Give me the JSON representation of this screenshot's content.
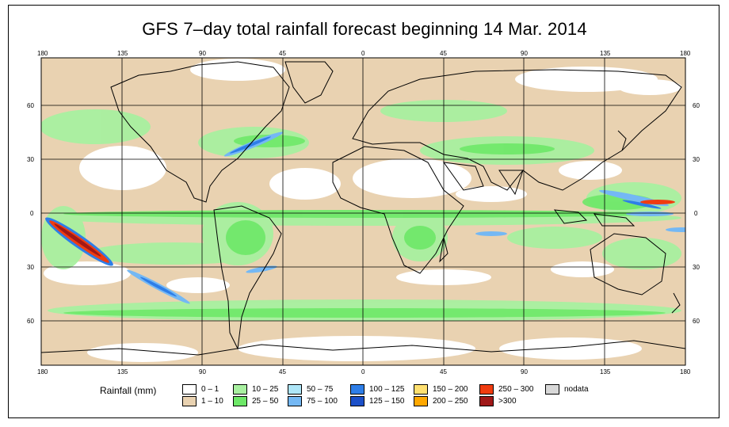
{
  "title": "GFS 7–day total rainfall forecast beginning 14 Mar. 2014",
  "longitude_labels": [
    "180",
    "135",
    "90",
    "45",
    "0",
    "45",
    "90",
    "135",
    "180"
  ],
  "latitude_labels": [
    "60",
    "30",
    "0",
    "30",
    "60"
  ],
  "legend": {
    "title": "Rainfall (mm)",
    "items": [
      {
        "label": "0 – 1",
        "color": "#ffffff"
      },
      {
        "label": "1 – 10",
        "color": "#e9d2b1"
      },
      {
        "label": "10 – 25",
        "color": "#a8f0a0"
      },
      {
        "label": "25 – 50",
        "color": "#6ee868"
      },
      {
        "label": "50 – 75",
        "color": "#aee6f8"
      },
      {
        "label": "75 – 100",
        "color": "#74b8f4"
      },
      {
        "label": "100 – 125",
        "color": "#2e7ee8"
      },
      {
        "label": "125 – 150",
        "color": "#1c50c8"
      },
      {
        "label": "150 – 200",
        "color": "#ffe070"
      },
      {
        "label": "200 – 250",
        "color": "#ffa800"
      },
      {
        "label": "250 – 300",
        "color": "#f03c10"
      },
      {
        "label": ">300",
        "color": "#a01818"
      },
      {
        "label": "nodata",
        "color": "#d8d8d8"
      }
    ]
  },
  "colors": {
    "ocean_dry": "#e9d2b1",
    "coast": "#000000",
    "grid": "#000000"
  }
}
